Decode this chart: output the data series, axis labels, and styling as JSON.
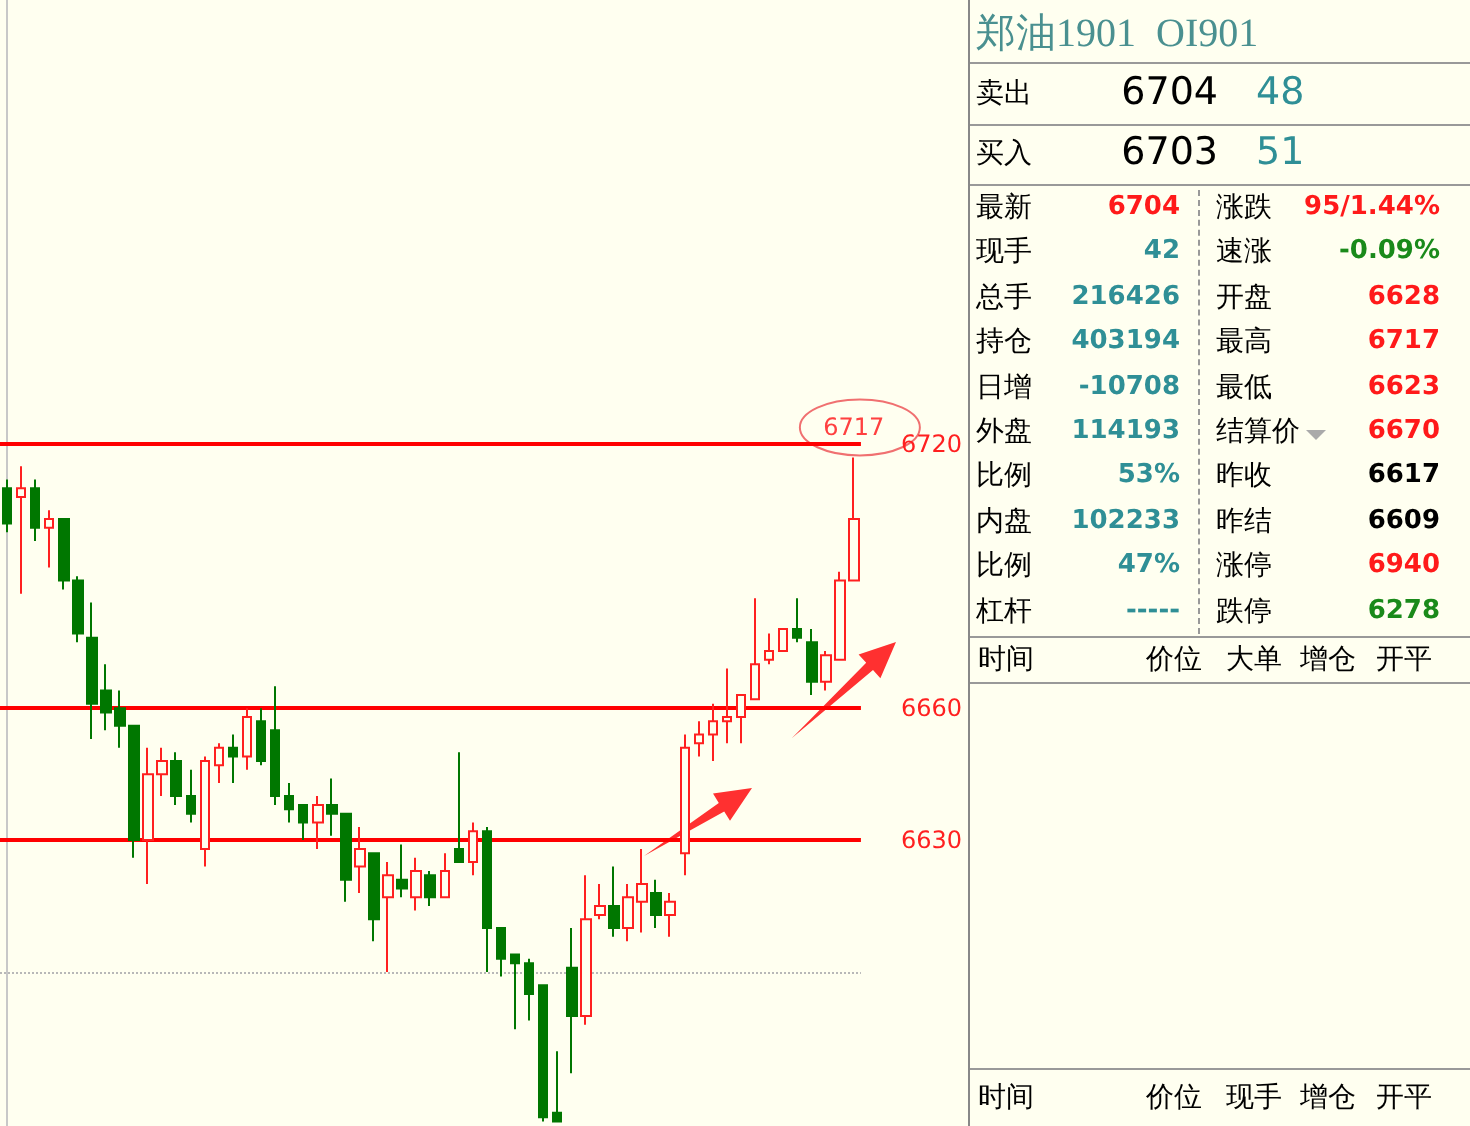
{
  "chart_data": [
    {
      "type": "candlestick",
      "categories": [
        null,
        null,
        null,
        null,
        null,
        null,
        null,
        null,
        null,
        null,
        null,
        null,
        null,
        null,
        null,
        null,
        null,
        null,
        null,
        null,
        null,
        null,
        null,
        null,
        null,
        null,
        null,
        null,
        null,
        null,
        null,
        null,
        null,
        null,
        null,
        null,
        null,
        null,
        null,
        null,
        null,
        null,
        null,
        null,
        null,
        null,
        null,
        null,
        null,
        null,
        null,
        null,
        null,
        null,
        null,
        null,
        null,
        null,
        null,
        null,
        null
      ],
      "ohlc": [
        [
          6710,
          6712,
          6700,
          6702
        ],
        [
          6708,
          6715,
          6686,
          6710
        ],
        [
          6710,
          6712,
          6698,
          6701
        ],
        [
          6701,
          6705,
          6692,
          6703
        ],
        [
          6703,
          6703,
          6687,
          6689
        ],
        [
          6689,
          6690,
          6675,
          6677
        ],
        [
          6676,
          6684,
          6653,
          6661
        ],
        [
          6664,
          6670,
          6655,
          6659
        ],
        [
          6660,
          6664,
          6651,
          6656
        ],
        [
          6656,
          6656,
          6626,
          6630
        ],
        [
          6630,
          6651,
          6620,
          6645
        ],
        [
          6645,
          6651,
          6640,
          6648
        ],
        [
          6648,
          6650,
          6638,
          6640
        ],
        [
          6640,
          6646,
          6634,
          6636
        ],
        [
          6628,
          6649,
          6624,
          6648
        ],
        [
          6647,
          6652,
          6643,
          6651
        ],
        [
          6651,
          6654,
          6643,
          6649
        ],
        [
          6649,
          6660,
          6646,
          6658
        ],
        [
          6657,
          6660,
          6647,
          6648
        ],
        [
          6655,
          6665,
          6638,
          6640
        ],
        [
          6640,
          6643,
          6634,
          6637
        ],
        [
          6638,
          6638,
          6630,
          6634
        ],
        [
          6634,
          6640,
          6628,
          6638
        ],
        [
          6638,
          6644,
          6631,
          6636
        ],
        [
          6636,
          6636,
          6616,
          6621
        ],
        [
          6624,
          6633,
          6618,
          6628
        ],
        [
          6627,
          6627,
          6607,
          6612
        ],
        [
          6617,
          6625,
          6600,
          6622
        ],
        [
          6621,
          6629,
          6617,
          6619
        ],
        [
          6617,
          6626,
          6614,
          6623
        ],
        [
          6622,
          6623,
          6615,
          6617
        ],
        [
          6617,
          6627,
          6617,
          6623
        ],
        [
          6628,
          6650,
          6625,
          6625
        ],
        [
          6625,
          6634,
          6622,
          6632
        ],
        [
          6632,
          6633,
          6600,
          6610
        ],
        [
          6610,
          6610,
          6599,
          6603
        ],
        [
          6604,
          6604,
          6587,
          6602
        ],
        [
          6602,
          6603,
          6589,
          6595
        ],
        [
          6597,
          6597,
          6566,
          6567
        ],
        [
          6568,
          6582,
          6566,
          6566
        ],
        [
          6601,
          6610,
          6577,
          6590
        ],
        [
          6590,
          6622,
          6588,
          6612
        ],
        [
          6613,
          6620,
          6612,
          6615
        ],
        [
          6615,
          6624,
          6608,
          6610
        ],
        [
          6610,
          6620,
          6607,
          6617
        ],
        [
          6616,
          6628,
          6609,
          6620
        ],
        [
          6618,
          6621,
          6610,
          6613
        ],
        [
          6613,
          6618,
          6608,
          6616
        ],
        [
          6627,
          6654,
          6622,
          6651
        ],
        [
          6652,
          6657,
          6649,
          6654
        ],
        [
          6654,
          6661,
          6648,
          6657
        ],
        [
          6657,
          6669,
          6652,
          6658
        ],
        [
          6658,
          6663,
          6652,
          6663
        ],
        [
          6662,
          6685,
          6662,
          6670
        ],
        [
          6671,
          6677,
          6670,
          6673
        ],
        [
          6673,
          6678,
          6673,
          6678
        ],
        [
          6678,
          6685,
          6675,
          6676
        ],
        [
          6675,
          6678,
          6663,
          6666
        ],
        [
          6666,
          6673,
          6664,
          6672
        ],
        [
          6671,
          6691,
          6671,
          6689
        ],
        [
          6689,
          6717,
          6689,
          6703
        ]
      ],
      "colors": [
        "#007700",
        "#ff2020",
        "#007700",
        "#ff2020",
        "#007700",
        "#007700",
        "#007700",
        "#007700",
        "#007700",
        "#007700",
        "#ff2020",
        "#ff2020",
        "#007700",
        "#007700",
        "#ff2020",
        "#ff2020",
        "#007700",
        "#ff2020",
        "#007700",
        "#007700",
        "#007700",
        "#007700",
        "#ff2020",
        "#007700",
        "#007700",
        "#ff2020",
        "#007700",
        "#ff2020",
        "#007700",
        "#ff2020",
        "#007700",
        "#ff2020",
        "#007700",
        "#ff2020",
        "#007700",
        "#007700",
        "#007700",
        "#007700",
        "#007700",
        "#007700",
        "#007700",
        "#ff2020",
        "#ff2020",
        "#007700",
        "#ff2020",
        "#ff2020",
        "#007700",
        "#ff2020",
        "#ff2020",
        "#ff2020",
        "#ff2020",
        "#ff2020",
        "#ff2020",
        "#ff2020",
        "#ff2020",
        "#ff2020",
        "#007700",
        "#007700",
        "#ff2020",
        "#ff2020",
        "#ff2020"
      ],
      "ylim": [
        6565,
        6821
      ],
      "yticks": [
        6630,
        6660,
        6720
      ],
      "tick_labels": "y",
      "ref_lines": [
        {
          "axis": "y",
          "value": 6600,
          "color": "#b8b8b8",
          "line_style": "dotted"
        },
        {
          "axis": "y",
          "value": 6720,
          "color": "#ff0000"
        },
        {
          "axis": "y",
          "value": 6660,
          "color": "#ff0000"
        },
        {
          "axis": "y",
          "value": 6630,
          "color": "#ff0000"
        }
      ],
      "annotations": [
        "6717"
      ]
    },
    {
      "type": "other",
      "title": "郑油1901  OI901",
      "annotations": [
        "卖出",
        "6704",
        "48",
        "买入",
        "6703",
        "51",
        "最新",
        "6704",
        "涨跌",
        "95/1.44%",
        "现手",
        "42",
        "速涨",
        "-0.09%",
        "总手",
        "216426",
        "开盘",
        "6628",
        "持仓",
        "403194",
        "最高",
        "6717",
        "日增",
        "-10708",
        "最低",
        "6623",
        "外盘",
        "114193",
        "结算价",
        "6670",
        "比例",
        "53%",
        "昨收",
        "6617",
        "内盘",
        "102233",
        "昨结",
        "6609",
        "比例",
        "47%",
        "涨停",
        "6940",
        "杠杆",
        "-----",
        "跌停",
        "6278",
        "时间",
        "价位",
        "大单",
        "增仓",
        "开平",
        "时间",
        "价位",
        "现手",
        "增仓",
        "开平"
      ]
    }
  ]
}
